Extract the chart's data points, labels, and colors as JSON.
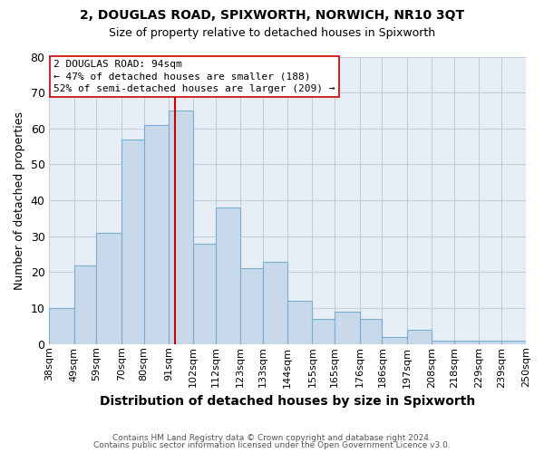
{
  "title": "2, DOUGLAS ROAD, SPIXWORTH, NORWICH, NR10 3QT",
  "subtitle": "Size of property relative to detached houses in Spixworth",
  "xlabel": "Distribution of detached houses by size in Spixworth",
  "ylabel": "Number of detached properties",
  "bin_edges": [
    38,
    49,
    59,
    70,
    80,
    91,
    102,
    112,
    123,
    133,
    144,
    155,
    165,
    176,
    186,
    197,
    208,
    218,
    229,
    239,
    250
  ],
  "bar_heights": [
    10,
    22,
    31,
    57,
    61,
    65,
    28,
    38,
    21,
    23,
    12,
    7,
    9,
    7,
    2,
    4,
    1,
    1,
    1,
    1
  ],
  "bar_color": "#c8d9eb",
  "bar_edge_color": "#7aaed0",
  "grid_color": "#c0cfe0",
  "background_color": "#e8eef6",
  "property_size": 94,
  "vline_color": "#cc0000",
  "annotation_line1": "2 DOUGLAS ROAD: 94sqm",
  "annotation_line2": "← 47% of detached houses are smaller (188)",
  "annotation_line3": "52% of semi-detached houses are larger (209) →",
  "annotation_box_color": "#ffffff",
  "annotation_box_edge": "#cc0000",
  "ylim": [
    0,
    80
  ],
  "yticks": [
    0,
    10,
    20,
    30,
    40,
    50,
    60,
    70,
    80
  ],
  "footer1": "Contains HM Land Registry data © Crown copyright and database right 2024.",
  "footer2": "Contains public sector information licensed under the Open Government Licence v3.0."
}
